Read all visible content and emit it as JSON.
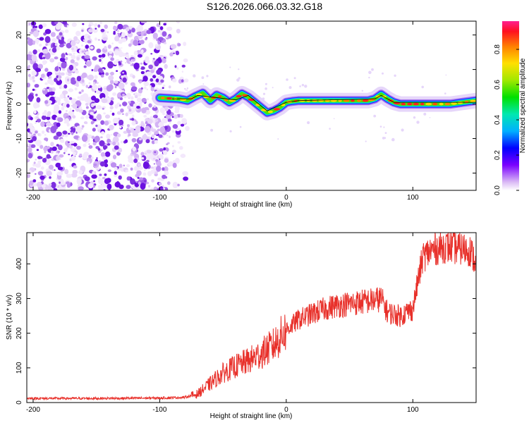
{
  "title": "S126.2026.066.03.32.G18",
  "chart_data": [
    {
      "type": "heatmap",
      "xlabel": "Height of straight line (km)",
      "ylabel": "Frequency (Hz)",
      "xlim": [
        -205,
        150
      ],
      "ylim": [
        -25,
        24
      ],
      "xticks": [
        -200,
        -100,
        0,
        100
      ],
      "yticks": [
        -20,
        -10,
        0,
        10,
        20
      ],
      "noise_region_x": [
        -205,
        -78
      ],
      "ridge_region_x": [
        -100,
        150
      ],
      "ridge": {
        "x": [
          -100,
          -85,
          -78,
          -72,
          -66,
          -60,
          -55,
          -50,
          -45,
          -40,
          -35,
          -30,
          -25,
          -20,
          -15,
          -10,
          -5,
          0,
          5,
          10,
          20,
          30,
          40,
          50,
          60,
          65,
          70,
          75,
          80,
          85,
          90,
          95,
          100,
          110,
          120,
          130,
          140,
          150
        ],
        "y": [
          1.8,
          1.5,
          1.0,
          2.2,
          3.2,
          1.0,
          2.6,
          1.8,
          0.5,
          1.5,
          3.0,
          2.0,
          0.5,
          -1.0,
          -2.5,
          -2.0,
          -1.0,
          0.5,
          0.8,
          1.0,
          1.0,
          1.0,
          1.0,
          1.0,
          1.0,
          1.0,
          1.5,
          2.8,
          1.5,
          0.5,
          0.0,
          0.0,
          0.0,
          0.0,
          0.0,
          0.0,
          0.5,
          1.0
        ]
      },
      "colorbar": {
        "label": "Normalized spectral amplitude",
        "range": [
          0.0,
          0.96
        ],
        "ticks": [
          0.0,
          0.2,
          0.4,
          0.6,
          0.8
        ]
      }
    },
    {
      "type": "line",
      "xlabel": "Height of straight line (km)",
      "ylabel": "SNR (10 * v/v)",
      "xlim": [
        -205,
        150
      ],
      "ylim": [
        0,
        490
      ],
      "xticks": [
        -200,
        -100,
        0,
        100
      ],
      "yticks": [
        0,
        100,
        200,
        300,
        400
      ],
      "series": [
        {
          "name": "SNR",
          "color": "#e8302a",
          "x": [
            -205,
            -150,
            -100,
            -80,
            -70,
            -60,
            -50,
            -40,
            -30,
            -20,
            -10,
            0,
            10,
            20,
            30,
            40,
            50,
            60,
            70,
            75,
            80,
            90,
            100,
            104,
            108,
            115,
            125,
            135,
            145,
            150
          ],
          "y": [
            12,
            12,
            13,
            15,
            25,
            55,
            85,
            105,
            120,
            140,
            165,
            210,
            240,
            255,
            270,
            280,
            285,
            290,
            295,
            300,
            260,
            250,
            270,
            350,
            420,
            440,
            450,
            445,
            440,
            400
          ]
        }
      ]
    }
  ]
}
